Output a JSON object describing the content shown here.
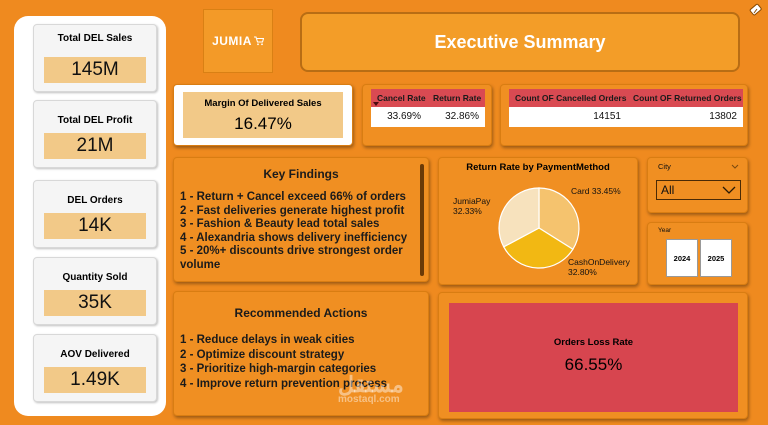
{
  "kpis": [
    {
      "label": "Total DEL Sales",
      "value": "145M"
    },
    {
      "label": "Total DEL Profit",
      "value": "21M"
    },
    {
      "label": "DEL Orders",
      "value": "14K"
    },
    {
      "label": "Quantity Sold",
      "value": "35K"
    },
    {
      "label": "AOV Delivered",
      "value": "1.49K"
    }
  ],
  "logo": {
    "text": "JUMIA"
  },
  "header": {
    "title": "Executive Summary"
  },
  "margin": {
    "label": "Margin Of Delivered Sales",
    "value": "16.47%"
  },
  "rates_table": {
    "headers": [
      "Cancel Rate",
      "Return Rate"
    ],
    "values": [
      "33.69%",
      "32.86%"
    ]
  },
  "counts_table": {
    "headers": [
      "Count OF Cancelled Orders",
      "Count OF Returned Orders"
    ],
    "values": [
      "14151",
      "13802"
    ]
  },
  "findings": {
    "title": "Key Findings",
    "items": [
      "1 - Return + Cancel exceed 66% of orders",
      "2 - Fast deliveries generate highest profit",
      "3 - Fashion & Beauty lead total sales",
      "4 - Alexandria shows delivery inefficiency",
      "5 - 20%+ discounts drive strongest order",
      "volume"
    ]
  },
  "actions": {
    "title": "Recommended Actions",
    "items": [
      "1 - Reduce delays in weak cities",
      "2 - Optimize discount strategy",
      "3 - Prioritize high-margin categories",
      "4 - Improve return prevention process"
    ]
  },
  "chart_data": {
    "type": "pie",
    "title": "Return Rate by PaymentMethod",
    "slices": [
      {
        "name": "Card",
        "value": 33.45,
        "label": "33.45%",
        "color": "#f5c36e"
      },
      {
        "name": "CashOnDelivery",
        "value": 32.8,
        "label": "32.80%",
        "color": "#f2b813"
      },
      {
        "name": "JumiaPay",
        "value": 32.33,
        "label": "32.33%",
        "color": "#f7e2bd"
      }
    ]
  },
  "city_slicer": {
    "label": "City",
    "selected": "All"
  },
  "year_slicer": {
    "label": "Year",
    "options": [
      "2024",
      "2025"
    ]
  },
  "loss": {
    "label": "Orders Loss Rate",
    "value": "66.55%"
  },
  "watermark": {
    "arabic": "مستقل",
    "latin": "mostaql.com"
  },
  "colors": {
    "accent": "#ef8a1f",
    "red": "#d94a52",
    "tan": "#f2c988"
  }
}
